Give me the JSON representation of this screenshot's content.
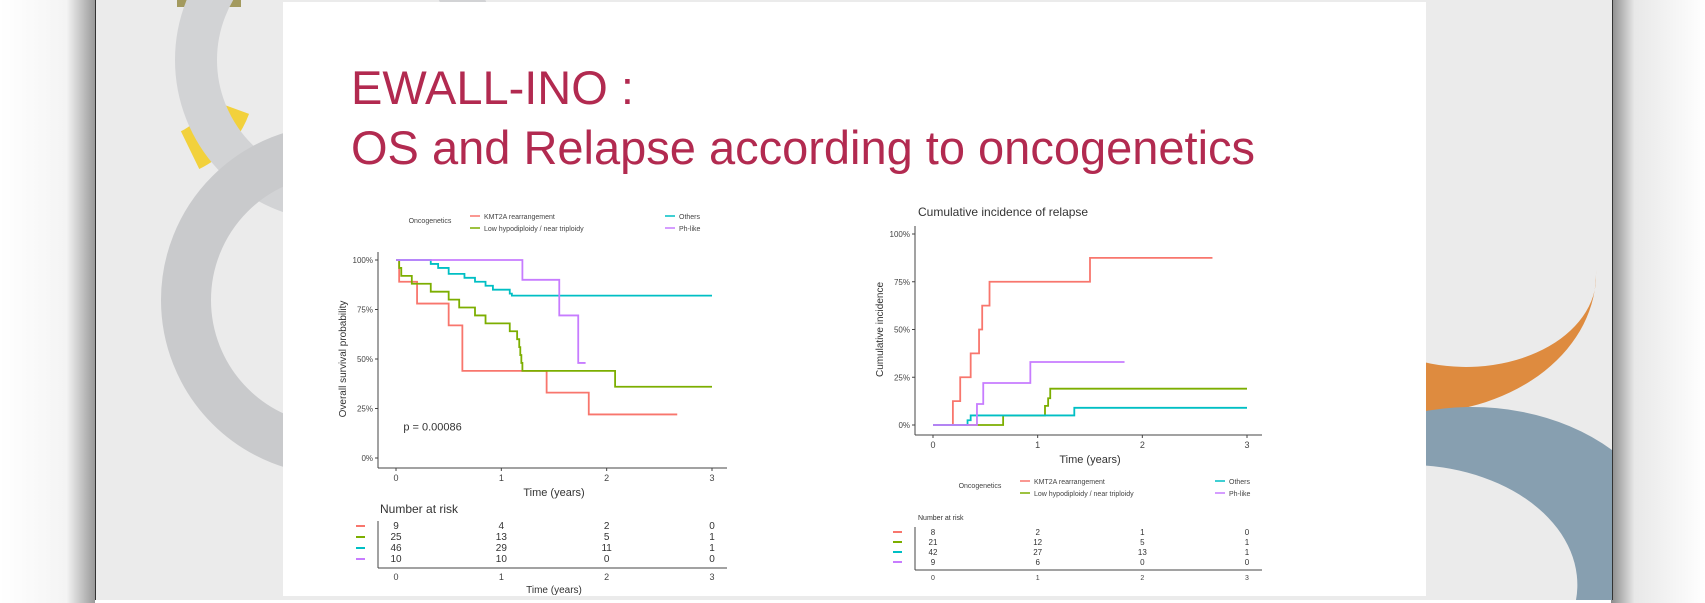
{
  "slide": {
    "title_line1": "EWALL-INO :",
    "title_line2": "OS and Relapse according to oncogenetics"
  },
  "colors": {
    "title": "#b22a50",
    "KMT2A": "#F8766D",
    "LowHypo": "#7CAE00",
    "Others": "#00BFC4",
    "PhLike": "#C77CFF"
  },
  "chart_data": [
    {
      "type": "line",
      "title": "",
      "xlabel": "Time (years)",
      "ylabel": "Overall survival probability",
      "xlim": [
        0,
        3
      ],
      "ylim": [
        0,
        1
      ],
      "xticks": [
        "0",
        "1",
        "2",
        "3"
      ],
      "yticks": [
        "0%",
        "25%",
        "50%",
        "75%",
        "100%"
      ],
      "annotation": "p = 0.00086",
      "legend_title": "Oncogenetics",
      "legend_position": "top",
      "series": [
        {
          "name": "KMT2A rearrangement",
          "color": "#F8766D",
          "steps": [
            [
              0,
              1
            ],
            [
              0.03,
              0.89
            ],
            [
              0.2,
              0.78
            ],
            [
              0.5,
              0.67
            ],
            [
              0.63,
              0.44
            ],
            [
              1.43,
              0.33
            ],
            [
              1.83,
              0.22
            ]
          ],
          "end": 2.67
        },
        {
          "name": "Low hypodiploidy / near triploidy",
          "color": "#7CAE00",
          "steps": [
            [
              0,
              1
            ],
            [
              0.03,
              0.96
            ],
            [
              0.05,
              0.92
            ],
            [
              0.15,
              0.88
            ],
            [
              0.33,
              0.84
            ],
            [
              0.5,
              0.8
            ],
            [
              0.6,
              0.76
            ],
            [
              0.75,
              0.72
            ],
            [
              0.85,
              0.68
            ],
            [
              1.08,
              0.64
            ],
            [
              1.15,
              0.6
            ],
            [
              1.17,
              0.56
            ],
            [
              1.18,
              0.52
            ],
            [
              1.19,
              0.48
            ],
            [
              1.2,
              0.44
            ],
            [
              2.08,
              0.36
            ]
          ],
          "end": 3
        },
        {
          "name": "Others",
          "color": "#00BFC4",
          "steps": [
            [
              0,
              1
            ],
            [
              0.33,
              0.98
            ],
            [
              0.4,
              0.96
            ],
            [
              0.5,
              0.93
            ],
            [
              0.65,
              0.91
            ],
            [
              0.75,
              0.89
            ],
            [
              0.85,
              0.87
            ],
            [
              0.92,
              0.85
            ],
            [
              1.08,
              0.83
            ],
            [
              1.1,
              0.82
            ]
          ],
          "end": 3
        },
        {
          "name": "Ph-like",
          "color": "#C77CFF",
          "steps": [
            [
              0,
              1
            ],
            [
              1.2,
              0.9
            ],
            [
              1.55,
              0.72
            ],
            [
              1.73,
              0.48
            ]
          ],
          "end": 1.8
        }
      ],
      "risk_table": {
        "title": "Number at risk",
        "xlabel": "Time (years)",
        "times": [
          "0",
          "1",
          "2",
          "3"
        ],
        "rows": [
          [
            "9",
            "4",
            "2",
            "0"
          ],
          [
            "25",
            "13",
            "5",
            "1"
          ],
          [
            "46",
            "29",
            "11",
            "1"
          ],
          [
            "10",
            "10",
            "0",
            "0"
          ]
        ]
      }
    },
    {
      "type": "line",
      "title": "Cumulative incidence of relapse",
      "xlabel": "Time (years)",
      "ylabel": "Cumulative incidence",
      "xlim": [
        0,
        3
      ],
      "ylim": [
        0,
        1
      ],
      "xticks": [
        "0",
        "1",
        "2",
        "3"
      ],
      "yticks": [
        "0%",
        "25%",
        "50%",
        "75%",
        "100%"
      ],
      "legend_title": "Oncogenetics",
      "legend_position": "bottom",
      "series": [
        {
          "name": "KMT2A rearrangement",
          "color": "#F8766D",
          "steps": [
            [
              0,
              0
            ],
            [
              0.19,
              0.125
            ],
            [
              0.26,
              0.25
            ],
            [
              0.36,
              0.375
            ],
            [
              0.44,
              0.5
            ],
            [
              0.47,
              0.625
            ],
            [
              0.54,
              0.75
            ],
            [
              1.5,
              0.875
            ]
          ],
          "end": 2.67
        },
        {
          "name": "Low hypodiploidy / near triploidy",
          "color": "#7CAE00",
          "steps": [
            [
              0,
              0
            ],
            [
              0.67,
              0.05
            ],
            [
              1.07,
              0.1
            ],
            [
              1.1,
              0.14
            ],
            [
              1.12,
              0.19
            ]
          ],
          "end": 3
        },
        {
          "name": "Others",
          "color": "#00BFC4",
          "steps": [
            [
              0,
              0
            ],
            [
              0.33,
              0.025
            ],
            [
              0.36,
              0.05
            ],
            [
              1.35,
              0.09
            ]
          ],
          "end": 3
        },
        {
          "name": "Ph-like",
          "color": "#C77CFF",
          "steps": [
            [
              0,
              0
            ],
            [
              0.42,
              0.11
            ],
            [
              0.48,
              0.22
            ],
            [
              0.93,
              0.33
            ]
          ],
          "end": 1.83
        }
      ],
      "risk_table": {
        "title": "Number at risk",
        "times": [
          "0",
          "1",
          "2",
          "3"
        ],
        "rows": [
          [
            "8",
            "2",
            "1",
            "0"
          ],
          [
            "21",
            "12",
            "5",
            "1"
          ],
          [
            "42",
            "27",
            "13",
            "1"
          ],
          [
            "9",
            "6",
            "0",
            "0"
          ]
        ]
      }
    }
  ]
}
